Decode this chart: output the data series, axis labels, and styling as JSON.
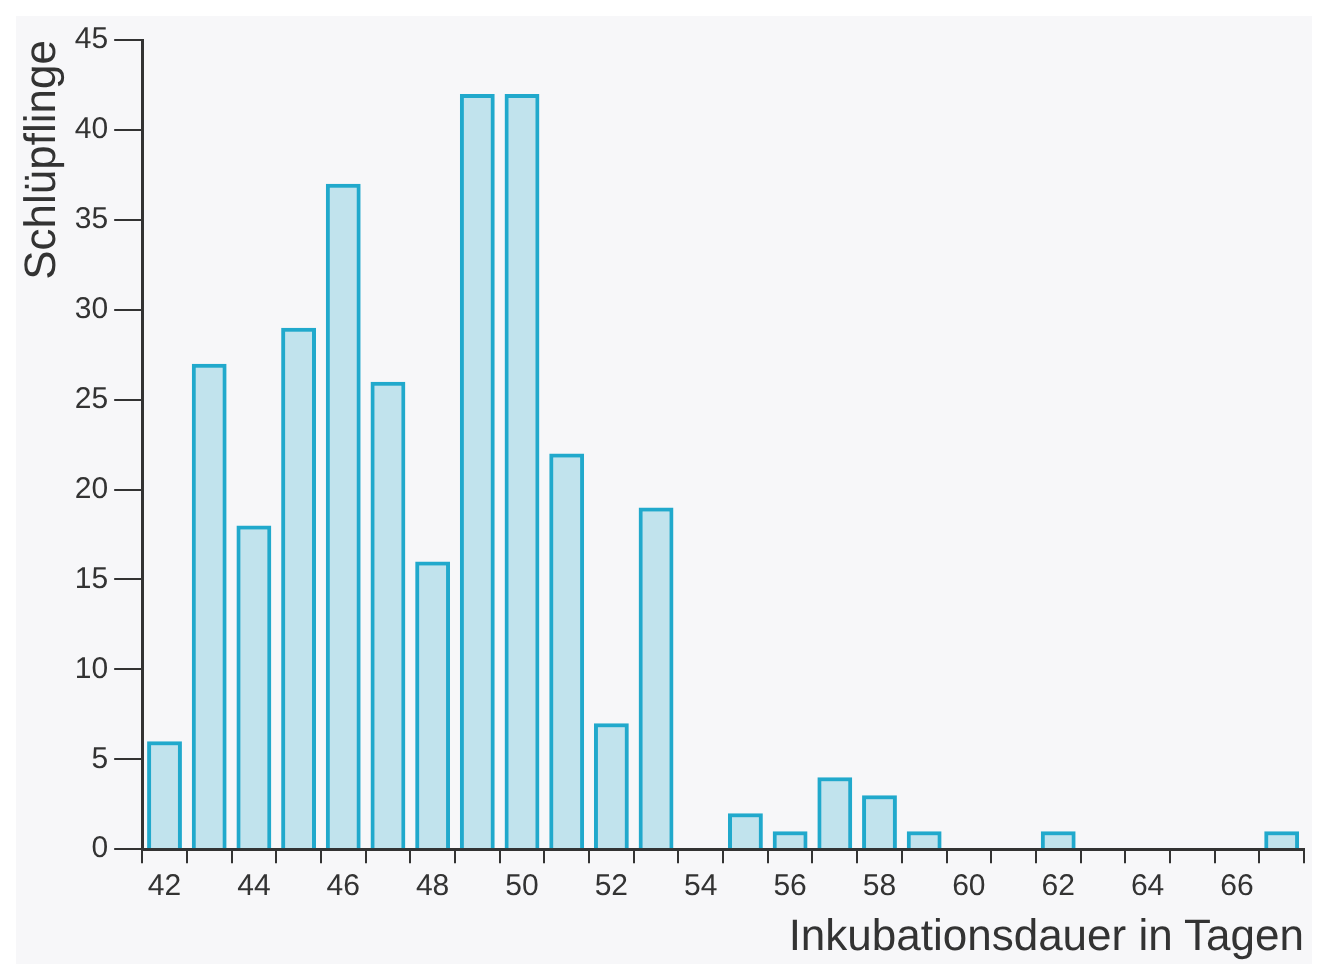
{
  "chart_data": {
    "type": "bar",
    "xlabel": "Inkubationsdauer in Tagen",
    "ylabel": "Schlüpflinge",
    "categories": [
      "42",
      null,
      "44",
      null,
      "46",
      null,
      "48",
      null,
      "50",
      null,
      "52",
      null,
      "54",
      null,
      "56",
      null,
      "58",
      null,
      "60",
      null,
      "62",
      null,
      "64",
      null,
      "66",
      null
    ],
    "values": [
      6,
      27,
      18,
      29,
      37,
      26,
      16,
      42,
      42,
      22,
      7,
      19,
      0,
      2,
      1,
      4,
      3,
      1,
      0,
      0,
      1,
      0,
      0,
      0,
      0,
      1
    ],
    "color": "#21a9cc",
    "ylim": [
      0,
      45
    ],
    "yticks": [
      0,
      5,
      10,
      15,
      20,
      25,
      30,
      35,
      40,
      45
    ],
    "grid": false,
    "legend": false
  }
}
